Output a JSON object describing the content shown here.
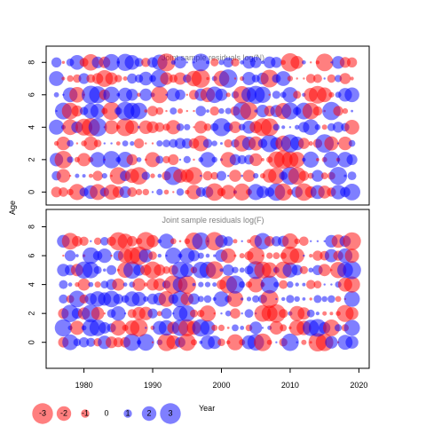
{
  "colors": {
    "negative": "#FF0000",
    "positive": "#0000FF",
    "opacity": 0.5
  },
  "ylabel": "Age",
  "xlabel": "Year",
  "xticks": [
    1980,
    1990,
    2000,
    2010,
    2020
  ],
  "yticks": [
    0,
    2,
    4,
    6,
    8
  ],
  "legend": {
    "labels": [
      "-3",
      "-2",
      "-1",
      "0",
      "1",
      "2",
      "3"
    ],
    "values": [
      -3,
      -2,
      -1,
      0,
      1,
      2,
      3
    ]
  },
  "chart_data": [
    {
      "type": "scatter",
      "subtype": "bubble",
      "title": "Joint sample residuals log(N)",
      "xlabel": "",
      "ylabel": "Age",
      "xlim": [
        1974.5,
        2021.5
      ],
      "ylim": [
        -0.8,
        9.0
      ],
      "years": [
        1976,
        2019
      ],
      "ages": [
        0,
        8
      ],
      "size_scale": "abs(residual), max ~3",
      "residual_seed": 11
    },
    {
      "type": "scatter",
      "subtype": "bubble",
      "title": "Joint sample residuals log(F)",
      "xlabel": "Year",
      "ylabel": "Age",
      "xlim": [
        1974.5,
        2021.5
      ],
      "ylim": [
        -1.8,
        9.2
      ],
      "years": [
        1977,
        2019
      ],
      "ages": [
        0,
        7
      ],
      "size_scale": "abs(residual), max ~3",
      "residual_seed": 29
    }
  ]
}
